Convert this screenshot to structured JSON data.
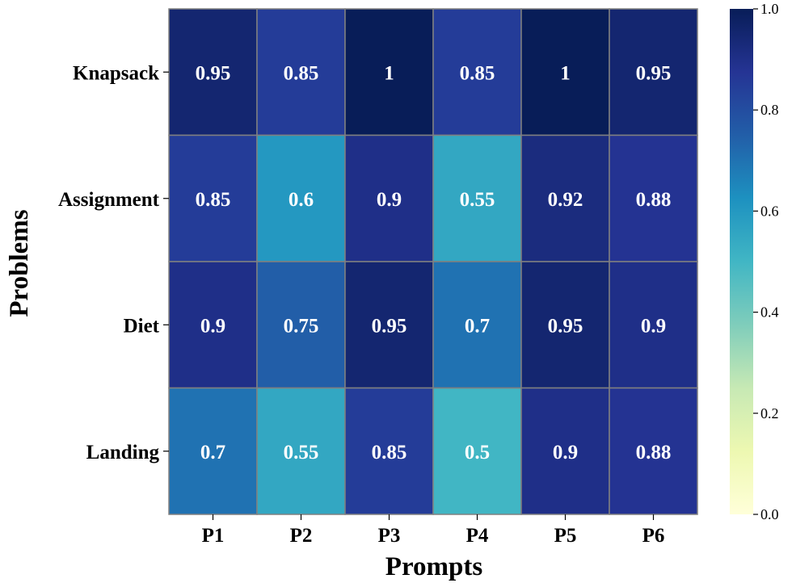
{
  "chart_data": {
    "type": "heatmap",
    "title": "",
    "xlabel": "Prompts",
    "ylabel": "Problems",
    "columns": [
      "P1",
      "P2",
      "P3",
      "P4",
      "P5",
      "P6"
    ],
    "rows": [
      "Knapsack",
      "Assignment",
      "Diet",
      "Landing"
    ],
    "values": [
      [
        0.95,
        0.85,
        1,
        0.85,
        1,
        0.95
      ],
      [
        0.85,
        0.6,
        0.9,
        0.55,
        0.92,
        0.88
      ],
      [
        0.9,
        0.75,
        0.95,
        0.7,
        0.95,
        0.9
      ],
      [
        0.7,
        0.55,
        0.85,
        0.5,
        0.9,
        0.88
      ]
    ],
    "value_labels": [
      [
        "0.95",
        "0.85",
        "1",
        "0.85",
        "1",
        "0.95"
      ],
      [
        "0.85",
        "0.6",
        "0.9",
        "0.55",
        "0.92",
        "0.88"
      ],
      [
        "0.9",
        "0.75",
        "0.95",
        "0.7",
        "0.95",
        "0.9"
      ],
      [
        "0.7",
        "0.55",
        "0.85",
        "0.5",
        "0.9",
        "0.88"
      ]
    ],
    "colormap": "YlGnBu",
    "vmin": 0.0,
    "vmax": 1.0,
    "colorbar_ticks": [
      "0.0",
      "0.2",
      "0.4",
      "0.6",
      "0.8",
      "1.0"
    ],
    "cell_border_color": "#808080",
    "cell_text_color": "#ffffff"
  }
}
